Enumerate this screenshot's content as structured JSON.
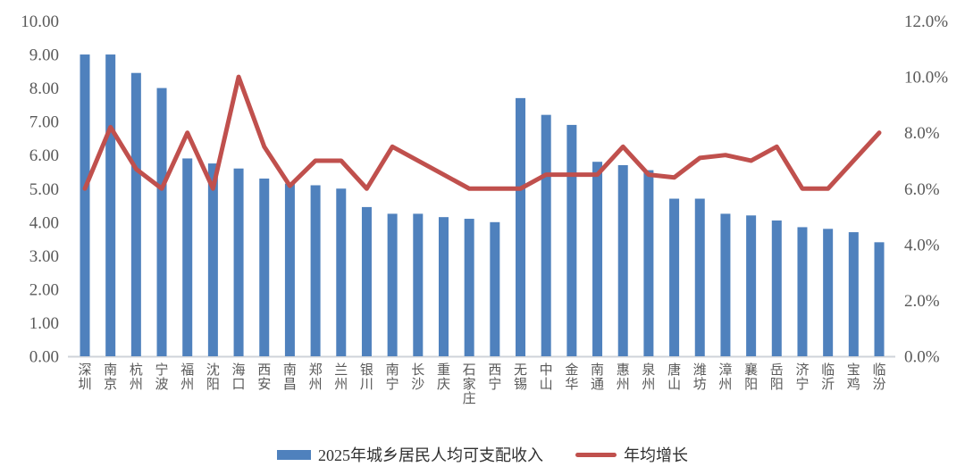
{
  "chart_data": {
    "type": "bar",
    "combo": "bar+line",
    "title": "",
    "categories": [
      "深圳",
      "南京",
      "杭州",
      "宁波",
      "福州",
      "沈阳",
      "海口",
      "西安",
      "南昌",
      "郑州",
      "兰州",
      "银川",
      "南宁",
      "长沙",
      "重庆",
      "石家庄",
      "西宁",
      "无锡",
      "中山",
      "金华",
      "南通",
      "惠州",
      "泉州",
      "唐山",
      "潍坊",
      "漳州",
      "襄阳",
      "岳阳",
      "济宁",
      "临沂",
      "宝鸡",
      "临汾"
    ],
    "series": [
      {
        "name": "2025年城乡居民人均可支配收入",
        "type": "bar",
        "axis": "left",
        "color": "#4F81BD",
        "values": [
          9.0,
          9.0,
          8.45,
          8.0,
          5.9,
          5.75,
          5.6,
          5.3,
          5.15,
          5.1,
          5.0,
          4.45,
          4.25,
          4.25,
          4.15,
          4.1,
          4.0,
          7.7,
          7.2,
          6.9,
          5.8,
          5.7,
          5.55,
          4.7,
          4.7,
          4.25,
          4.2,
          4.05,
          3.85,
          3.8,
          3.7,
          3.4
        ]
      },
      {
        "name": "年均增长",
        "type": "line",
        "axis": "right",
        "color": "#C0504D",
        "values": [
          6.0,
          8.2,
          6.7,
          6.0,
          8.0,
          6.0,
          10.0,
          7.5,
          6.1,
          7.0,
          7.0,
          6.0,
          7.5,
          7.0,
          6.5,
          6.0,
          6.0,
          6.0,
          6.5,
          6.5,
          6.5,
          7.5,
          6.5,
          6.4,
          7.1,
          7.2,
          7.0,
          7.5,
          6.0,
          6.0,
          7.0,
          8.0
        ]
      }
    ],
    "left_axis": {
      "min": 0,
      "max": 10,
      "tick_step": 1,
      "tick_labels": [
        "10.00",
        "9.00",
        "8.00",
        "7.00",
        "6.00",
        "5.00",
        "4.00",
        "3.00",
        "2.00",
        "1.00",
        "0.00"
      ]
    },
    "right_axis": {
      "min": 0,
      "max": 12,
      "tick_step": 2,
      "tick_labels": [
        "12.0%",
        "10.0%",
        "8.0%",
        "6.0%",
        "4.0%",
        "2.0%",
        "0.0%"
      ]
    },
    "grid": false,
    "legend_position": "bottom",
    "axis_text_color": "#595959",
    "baseline_color": "#CFD3D9"
  }
}
